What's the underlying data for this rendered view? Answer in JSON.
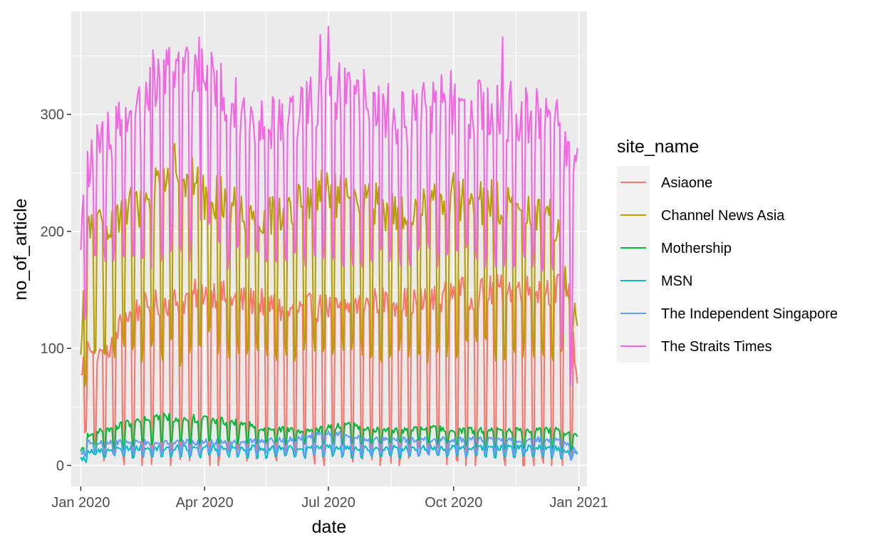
{
  "chart_data": {
    "type": "line",
    "xlabel": "date",
    "ylabel": "no_of_article",
    "x_ticks": [
      "Jan 2020",
      "Apr 2020",
      "Jul 2020",
      "Oct 2020",
      "Jan 2021"
    ],
    "y_ticks": [
      "0",
      "100",
      "200",
      "300"
    ],
    "y_tick_values": [
      0,
      100,
      200,
      300
    ],
    "ylim": [
      -18,
      388
    ],
    "xlim": [
      "2019-12-25",
      "2021-01-07"
    ],
    "x": [
      "2020-01-01",
      "2020-01-06",
      "2020-01-11",
      "2020-01-20",
      "2020-02-01",
      "2020-02-15",
      "2020-03-01",
      "2020-03-15",
      "2020-04-01",
      "2020-04-15",
      "2020-05-01",
      "2020-05-15",
      "2020-06-01",
      "2020-06-15",
      "2020-07-01",
      "2020-07-15",
      "2020-08-01",
      "2020-08-15",
      "2020-09-01",
      "2020-09-15",
      "2020-10-01",
      "2020-10-15",
      "2020-11-01",
      "2020-11-15",
      "2020-12-01",
      "2020-12-15",
      "2020-12-24",
      "2020-12-31"
    ],
    "weekday_low": [
      [
        45,
        20,
        15,
        10,
        10,
        10,
        10,
        10,
        10,
        10,
        10,
        10,
        10,
        10,
        10,
        10,
        10,
        10,
        10,
        10,
        10,
        10,
        10,
        10,
        10,
        10,
        5,
        30
      ],
      [
        50,
        80,
        90,
        100,
        100,
        100,
        100,
        100,
        110,
        100,
        100,
        100,
        100,
        100,
        100,
        100,
        100,
        100,
        100,
        100,
        100,
        100,
        100,
        100,
        100,
        100,
        100,
        110
      ],
      [
        5,
        10,
        10,
        15,
        15,
        20,
        20,
        20,
        20,
        20,
        20,
        20,
        20,
        20,
        20,
        20,
        20,
        20,
        20,
        20,
        20,
        15,
        15,
        15,
        15,
        15,
        10,
        20
      ],
      [
        2,
        5,
        8,
        8,
        8,
        8,
        8,
        8,
        8,
        8,
        8,
        8,
        8,
        8,
        8,
        8,
        8,
        8,
        8,
        8,
        8,
        8,
        8,
        8,
        8,
        8,
        5,
        8
      ],
      [
        4,
        8,
        10,
        10,
        10,
        10,
        10,
        10,
        10,
        10,
        10,
        10,
        10,
        10,
        10,
        10,
        10,
        10,
        10,
        10,
        10,
        10,
        10,
        10,
        10,
        10,
        5,
        10
      ],
      [
        110,
        150,
        170,
        180,
        180,
        170,
        180,
        180,
        200,
        180,
        180,
        180,
        180,
        180,
        180,
        180,
        180,
        180,
        180,
        180,
        180,
        180,
        180,
        180,
        180,
        170,
        40,
        150
      ]
    ],
    "series": [
      {
        "name": "Asiaone",
        "color": "#F8766D",
        "values": [
          75,
          110,
          95,
          95,
          125,
          135,
          140,
          140,
          150,
          145,
          140,
          140,
          130,
          135,
          135,
          135,
          140,
          140,
          140,
          140,
          150,
          145,
          150,
          150,
          150,
          150,
          155,
          70
        ]
      },
      {
        "name": "Channel News Asia",
        "color": "#B79F00",
        "values": [
          90,
          210,
          200,
          210,
          220,
          220,
          250,
          255,
          230,
          230,
          215,
          215,
          215,
          225,
          235,
          225,
          225,
          215,
          215,
          225,
          230,
          225,
          225,
          215,
          215,
          210,
          150,
          120
        ]
      },
      {
        "name": "Mothership",
        "color": "#00BA38",
        "values": [
          10,
          27,
          28,
          30,
          35,
          38,
          42,
          40,
          40,
          38,
          35,
          32,
          30,
          30,
          32,
          35,
          30,
          30,
          30,
          32,
          30,
          30,
          30,
          30,
          30,
          30,
          28,
          25
        ]
      },
      {
        "name": "MSN",
        "color": "#00BFC4",
        "values": [
          5,
          12,
          12,
          14,
          15,
          15,
          15,
          15,
          15,
          15,
          15,
          15,
          15,
          16,
          16,
          16,
          15,
          15,
          15,
          15,
          15,
          15,
          15,
          15,
          15,
          15,
          12,
          10
        ]
      },
      {
        "name": "The Independent Singapore",
        "color": "#619CFF",
        "values": [
          8,
          20,
          20,
          20,
          20,
          20,
          20,
          20,
          20,
          20,
          20,
          22,
          22,
          25,
          28,
          25,
          22,
          22,
          22,
          22,
          22,
          22,
          22,
          22,
          22,
          22,
          18,
          12
        ]
      },
      {
        "name": "The Straits Times",
        "color": "#F564E3",
        "values": [
          200,
          250,
          270,
          280,
          290,
          300,
          330,
          340,
          350,
          320,
          300,
          300,
          290,
          310,
          320,
          330,
          310,
          300,
          300,
          310,
          310,
          300,
          310,
          300,
          300,
          295,
          260,
          280
        ]
      }
    ],
    "peaks": [
      {
        "date": "2020-02-23",
        "value": 355
      },
      {
        "date": "2020-03-28",
        "value": 366
      },
      {
        "date": "2020-06-25",
        "value": 368
      },
      {
        "date": "2020-07-01",
        "value": 375
      },
      {
        "date": "2020-11-06",
        "value": 366
      }
    ],
    "legend": {
      "title": "site_name",
      "position": "right",
      "labels": [
        "Asiaone",
        "Channel News Asia",
        "Mothership",
        "MSN",
        "The Independent Singapore",
        "The Straits Times"
      ]
    },
    "grid": true,
    "colors": {
      "panel": "#EBEBEB",
      "grid": "#FFFFFF",
      "tick_text": "#4D4D4D",
      "legend_key": "#F2F2F2"
    }
  }
}
